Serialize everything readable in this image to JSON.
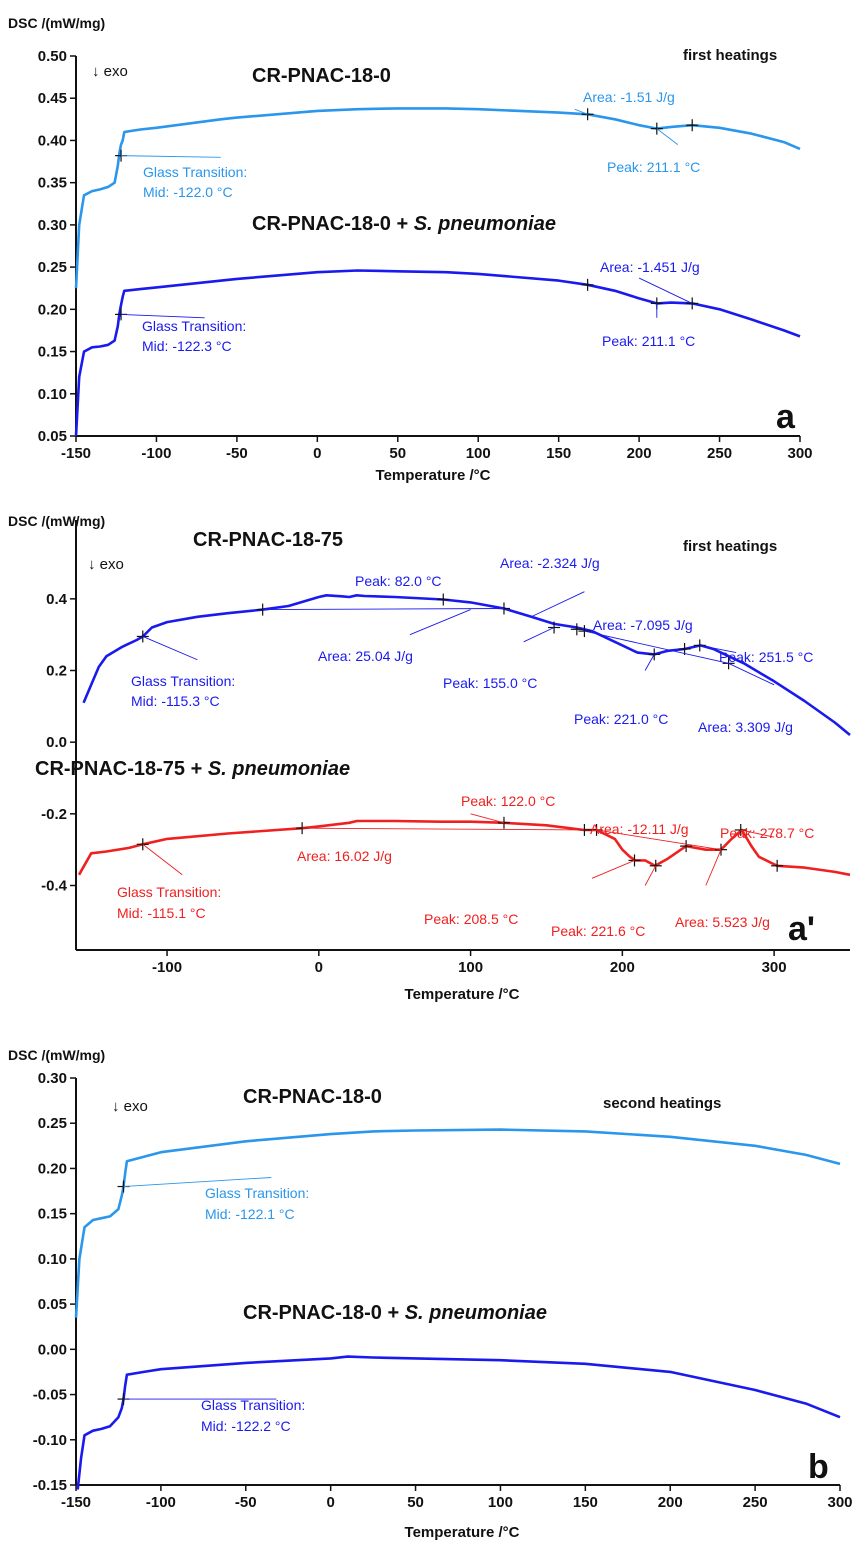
{
  "figure": {
    "panels": [
      {
        "id": "a",
        "ylabel": "DSC /(mW/mg)",
        "xlabel": "Temperature /°C",
        "exo_label": "↓ exo",
        "heating_label": "first heatings",
        "panel_letter": "a",
        "colors": {
          "sample_0": "#2a96ec",
          "sample_1": "#1a1aee"
        },
        "sample_titles": [
          {
            "text": "CR-PNAC-18-0",
            "italic": ""
          },
          {
            "text": "CR-PNAC-18-0 +",
            "italic": "S. pneumoniae"
          }
        ],
        "labels": [
          {
            "text": "Area: -1.51 J/g",
            "series": 0
          },
          {
            "text": "Peak: 211.1 °C",
            "series": 0
          },
          {
            "text": "Glass Transition:",
            "series": 0
          },
          {
            "text": "Mid:  -122.0 °C",
            "series": 0
          },
          {
            "text": "Area: -1.451 J/g",
            "series": 1
          },
          {
            "text": "Peak: 211.1 °C",
            "series": 1
          },
          {
            "text": "Glass Transition:",
            "series": 1
          },
          {
            "text": "Mid:  -122.3 °C",
            "series": 1
          }
        ]
      },
      {
        "id": "a_prime",
        "ylabel": "DSC /(mW/mg)",
        "xlabel": "Temperature /°C",
        "exo_label": "↓ exo",
        "heating_label": "first heatings",
        "panel_letter": "a'",
        "colors": {
          "sample_0": "#1a1aee",
          "sample_1": "#f02020"
        },
        "sample_titles": [
          {
            "text": "CR-PNAC-18-75",
            "italic": ""
          },
          {
            "text": "CR-PNAC-18-75 +",
            "italic": "S. pneumoniae"
          }
        ],
        "labels": [
          {
            "text": "Area: -2.324 J/g",
            "series": 0
          },
          {
            "text": "Peak: 82.0 °C",
            "series": 0
          },
          {
            "text": "Area: 25.04 J/g",
            "series": 0
          },
          {
            "text": "Area: -7.095 J/g",
            "series": 0
          },
          {
            "text": "Peak: 251.5 °C",
            "series": 0
          },
          {
            "text": "Glass Transition:",
            "series": 0
          },
          {
            "text": "Mid:  -115.3 °C",
            "series": 0
          },
          {
            "text": "Peak: 155.0 °C",
            "series": 0
          },
          {
            "text": "Peak: 221.0 °C",
            "series": 0
          },
          {
            "text": "Area: 3.309 J/g",
            "series": 0
          },
          {
            "text": "Peak: 122.0 °C",
            "series": 1
          },
          {
            "text": "Area: -12.11 J/g",
            "series": 1
          },
          {
            "text": "Peak: 278.7 °C",
            "series": 1
          },
          {
            "text": "Area: 16.02 J/g",
            "series": 1
          },
          {
            "text": "Glass Transition:",
            "series": 1
          },
          {
            "text": "Mid:  -115.1 °C",
            "series": 1
          },
          {
            "text": "Peak: 208.5 °C",
            "series": 1
          },
          {
            "text": "Peak: 221.6 °C",
            "series": 1
          },
          {
            "text": "Area: 5.523 J/g",
            "series": 1
          }
        ]
      },
      {
        "id": "b",
        "ylabel": "DSC /(mW/mg)",
        "xlabel": "Temperature /°C",
        "exo_label": "↓ exo",
        "heating_label": "second heatings",
        "panel_letter": "b",
        "colors": {
          "sample_0": "#2a96ec",
          "sample_1": "#1a1aee"
        },
        "sample_titles": [
          {
            "text": "CR-PNAC-18-0",
            "italic": ""
          },
          {
            "text": "CR-PNAC-18-0 +",
            "italic": "S. pneumoniae"
          }
        ],
        "labels": [
          {
            "text": "Glass Transition:",
            "series": 0
          },
          {
            "text": "Mid:  -122.1 °C",
            "series": 0
          },
          {
            "text": "Glass Transition:",
            "series": 1
          },
          {
            "text": "Mid:  -122.2 °C",
            "series": 1
          }
        ]
      }
    ]
  },
  "chart_data": [
    {
      "type": "line",
      "panel": "a",
      "title": "first heatings",
      "xlabel": "Temperature /°C",
      "ylabel": "DSC /(mW/mg)",
      "xlim": [
        -150,
        300
      ],
      "ylim": [
        0.05,
        0.5
      ],
      "xticks": [
        -150,
        -100,
        -50,
        0,
        50,
        100,
        150,
        200,
        250,
        300
      ],
      "yticks": [
        0.05,
        0.1,
        0.15,
        0.2,
        0.25,
        0.3,
        0.35,
        0.4,
        0.45,
        0.5
      ],
      "ytick_labels": [
        "0.05",
        "0.10",
        "0.15",
        "0.20",
        "0.25",
        "0.30",
        "0.35",
        "0.40",
        "0.45",
        "0.50"
      ],
      "series": [
        {
          "name": "CR-PNAC-18-0",
          "x": [
            -150,
            -148,
            -145,
            -140,
            -135,
            -130,
            -126,
            -124,
            -123,
            -122,
            -121,
            -120,
            -110,
            -100,
            -60,
            -50,
            0,
            25,
            50,
            80,
            100,
            150,
            168,
            185,
            200,
            211,
            220,
            233,
            250,
            270,
            290,
            300
          ],
          "y": [
            0.225,
            0.3,
            0.335,
            0.34,
            0.342,
            0.345,
            0.35,
            0.37,
            0.385,
            0.395,
            0.4,
            0.41,
            0.413,
            0.415,
            0.425,
            0.427,
            0.435,
            0.437,
            0.438,
            0.438,
            0.437,
            0.433,
            0.431,
            0.425,
            0.418,
            0.414,
            0.416,
            0.418,
            0.415,
            0.408,
            0.398,
            0.39
          ]
        },
        {
          "name": "CR-PNAC-18-0 + S. pneumoniae",
          "x": [
            -150,
            -148,
            -145,
            -140,
            -135,
            -130,
            -126,
            -124,
            -123,
            -122,
            -121,
            -120,
            -110,
            -100,
            -50,
            0,
            25,
            50,
            80,
            100,
            150,
            168,
            185,
            200,
            211,
            220,
            233,
            250,
            270,
            290,
            300
          ],
          "y": [
            0.05,
            0.12,
            0.15,
            0.155,
            0.156,
            0.158,
            0.163,
            0.18,
            0.195,
            0.205,
            0.215,
            0.222,
            0.224,
            0.226,
            0.236,
            0.244,
            0.246,
            0.245,
            0.244,
            0.242,
            0.234,
            0.229,
            0.222,
            0.213,
            0.207,
            0.208,
            0.207,
            0.2,
            0.188,
            0.175,
            0.168
          ]
        }
      ],
      "annotations": [
        {
          "series": 0,
          "kind": "peak",
          "temperature": 211.1
        },
        {
          "series": 0,
          "kind": "area",
          "value": -1.51,
          "unit": "J/g"
        },
        {
          "series": 0,
          "kind": "glass_transition_mid",
          "temperature": -122.0
        },
        {
          "series": 1,
          "kind": "peak",
          "temperature": 211.1
        },
        {
          "series": 1,
          "kind": "area",
          "value": -1.451,
          "unit": "J/g"
        },
        {
          "series": 1,
          "kind": "glass_transition_mid",
          "temperature": -122.3
        }
      ]
    },
    {
      "type": "line",
      "panel": "a'",
      "title": "first heatings",
      "xlabel": "Temperature /°C",
      "ylabel": "DSC /(mW/mg)",
      "xlim": [
        -160,
        350
      ],
      "ylim": [
        -0.58,
        0.62
      ],
      "xticks": [
        -100,
        0,
        100,
        200,
        300
      ],
      "yticks": [
        -0.4,
        -0.2,
        0.0,
        0.2,
        0.4
      ],
      "ytick_labels": [
        "-0.4",
        "-0.2",
        "0.0",
        "0.2",
        "0.4"
      ],
      "series": [
        {
          "name": "CR-PNAC-18-75",
          "x": [
            -155,
            -150,
            -145,
            -140,
            -130,
            -120,
            -116,
            -110,
            -100,
            -80,
            -60,
            -37,
            -20,
            0,
            5,
            15,
            20,
            25,
            30,
            50,
            82,
            100,
            122,
            140,
            155,
            170,
            180,
            200,
            210,
            221,
            230,
            241,
            251.5,
            260,
            270,
            280,
            300,
            320,
            340,
            350
          ],
          "y": [
            0.11,
            0.16,
            0.21,
            0.24,
            0.265,
            0.285,
            0.295,
            0.32,
            0.335,
            0.35,
            0.36,
            0.37,
            0.38,
            0.405,
            0.41,
            0.407,
            0.405,
            0.41,
            0.408,
            0.405,
            0.398,
            0.39,
            0.373,
            0.35,
            0.33,
            0.32,
            0.31,
            0.27,
            0.25,
            0.245,
            0.255,
            0.26,
            0.27,
            0.26,
            0.24,
            0.22,
            0.17,
            0.115,
            0.055,
            0.02
          ]
        },
        {
          "name": "CR-PNAC-18-75 + S. pneumoniae",
          "x": [
            -158,
            -150,
            -140,
            -125,
            -116,
            -100,
            -60,
            -11,
            0,
            20,
            25,
            30,
            50,
            80,
            100,
            122,
            150,
            175,
            183,
            195,
            200,
            205,
            208.5,
            215,
            221.6,
            230,
            242,
            255,
            265,
            272,
            278.7,
            285,
            290,
            302,
            320,
            340,
            350
          ],
          "y": [
            -0.37,
            -0.31,
            -0.305,
            -0.295,
            -0.285,
            -0.27,
            -0.255,
            -0.24,
            -0.235,
            -0.225,
            -0.22,
            -0.22,
            -0.22,
            -0.222,
            -0.222,
            -0.225,
            -0.232,
            -0.245,
            -0.245,
            -0.27,
            -0.3,
            -0.32,
            -0.33,
            -0.33,
            -0.345,
            -0.325,
            -0.29,
            -0.3,
            -0.3,
            -0.27,
            -0.245,
            -0.29,
            -0.32,
            -0.345,
            -0.35,
            -0.362,
            -0.37
          ]
        }
      ],
      "annotations": [
        {
          "series": 0,
          "kind": "glass_transition_mid",
          "temperature": -115.3
        },
        {
          "series": 0,
          "kind": "area",
          "value": 25.04,
          "unit": "J/g"
        },
        {
          "series": 0,
          "kind": "peak",
          "temperature": 82.0
        },
        {
          "series": 0,
          "kind": "area",
          "value": -2.324,
          "unit": "J/g"
        },
        {
          "series": 0,
          "kind": "peak",
          "temperature": 155.0
        },
        {
          "series": 0,
          "kind": "area",
          "value": -7.095,
          "unit": "J/g"
        },
        {
          "series": 0,
          "kind": "peak",
          "temperature": 221.0
        },
        {
          "series": 0,
          "kind": "peak",
          "temperature": 251.5
        },
        {
          "series": 0,
          "kind": "area",
          "value": 3.309,
          "unit": "J/g"
        },
        {
          "series": 1,
          "kind": "glass_transition_mid",
          "temperature": -115.1
        },
        {
          "series": 1,
          "kind": "area",
          "value": 16.02,
          "unit": "J/g"
        },
        {
          "series": 1,
          "kind": "peak",
          "temperature": 122.0
        },
        {
          "series": 1,
          "kind": "area",
          "value": -12.11,
          "unit": "J/g"
        },
        {
          "series": 1,
          "kind": "peak",
          "temperature": 208.5
        },
        {
          "series": 1,
          "kind": "peak",
          "temperature": 221.6
        },
        {
          "series": 1,
          "kind": "peak",
          "temperature": 278.7
        },
        {
          "series": 1,
          "kind": "area",
          "value": 5.523,
          "unit": "J/g"
        }
      ]
    },
    {
      "type": "line",
      "panel": "b",
      "title": "second heatings",
      "xlabel": "Temperature /°C",
      "ylabel": "DSC /(mW/mg)",
      "xlim": [
        -150,
        300
      ],
      "ylim": [
        -0.15,
        0.3
      ],
      "xticks": [
        -150,
        -100,
        -50,
        0,
        50,
        100,
        150,
        200,
        250,
        300
      ],
      "yticks": [
        -0.15,
        -0.1,
        -0.05,
        0.0,
        0.05,
        0.1,
        0.15,
        0.2,
        0.25,
        0.3
      ],
      "ytick_labels": [
        "-0.15",
        "-0.10",
        "-0.05",
        "0.00",
        "0.05",
        "0.10",
        "0.15",
        "0.20",
        "0.25",
        "0.30"
      ],
      "series": [
        {
          "name": "CR-PNAC-18-0",
          "x": [
            -150,
            -148,
            -145,
            -140,
            -135,
            -130,
            -125,
            -123,
            -122,
            -121,
            -120,
            -110,
            -100,
            -50,
            0,
            25,
            50,
            100,
            150,
            200,
            250,
            280,
            300
          ],
          "y": [
            0.035,
            0.1,
            0.135,
            0.143,
            0.145,
            0.147,
            0.155,
            0.17,
            0.18,
            0.195,
            0.208,
            0.213,
            0.218,
            0.23,
            0.238,
            0.241,
            0.242,
            0.243,
            0.241,
            0.235,
            0.225,
            0.215,
            0.205
          ]
        },
        {
          "name": "CR-PNAC-18-0 + S. pneumoniae",
          "x": [
            -149,
            -147,
            -145,
            -140,
            -135,
            -130,
            -125,
            -123,
            -122,
            -121,
            -120,
            -110,
            -100,
            -50,
            0,
            10,
            25,
            50,
            100,
            150,
            200,
            250,
            280,
            300
          ],
          "y": [
            -0.155,
            -0.12,
            -0.095,
            -0.09,
            -0.088,
            -0.085,
            -0.075,
            -0.065,
            -0.055,
            -0.04,
            -0.028,
            -0.025,
            -0.022,
            -0.015,
            -0.01,
            -0.008,
            -0.009,
            -0.01,
            -0.012,
            -0.016,
            -0.025,
            -0.045,
            -0.06,
            -0.075
          ]
        }
      ],
      "annotations": [
        {
          "series": 0,
          "kind": "glass_transition_mid",
          "temperature": -122.1
        },
        {
          "series": 1,
          "kind": "glass_transition_mid",
          "temperature": -122.2
        }
      ]
    }
  ]
}
